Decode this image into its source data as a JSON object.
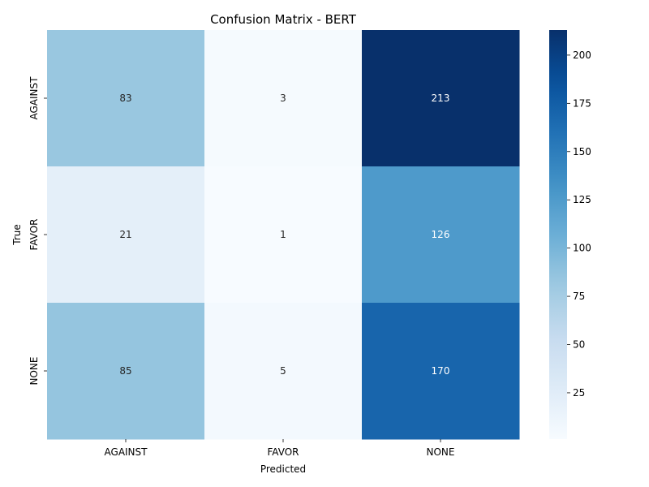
{
  "chart_data": {
    "type": "heatmap",
    "title": "Confusion Matrix - BERT",
    "xlabel": "Predicted",
    "ylabel": "True",
    "x_categories": [
      "AGAINST",
      "FAVOR",
      "NONE"
    ],
    "y_categories": [
      "AGAINST",
      "FAVOR",
      "NONE"
    ],
    "values": [
      [
        83,
        3,
        213
      ],
      [
        21,
        1,
        126
      ],
      [
        85,
        5,
        170
      ]
    ],
    "colormap": "Blues",
    "vmin": 1,
    "vmax": 213,
    "colorbar_ticks": [
      25,
      50,
      75,
      100,
      125,
      150,
      175,
      200
    ],
    "colorbar_ticks_text": [
      "25",
      "50",
      "75",
      "100",
      "125",
      "150",
      "175",
      "200"
    ],
    "values_text": [
      [
        "83",
        "3",
        "213"
      ],
      [
        "21",
        "1",
        "126"
      ],
      [
        "85",
        "5",
        "170"
      ]
    ]
  }
}
